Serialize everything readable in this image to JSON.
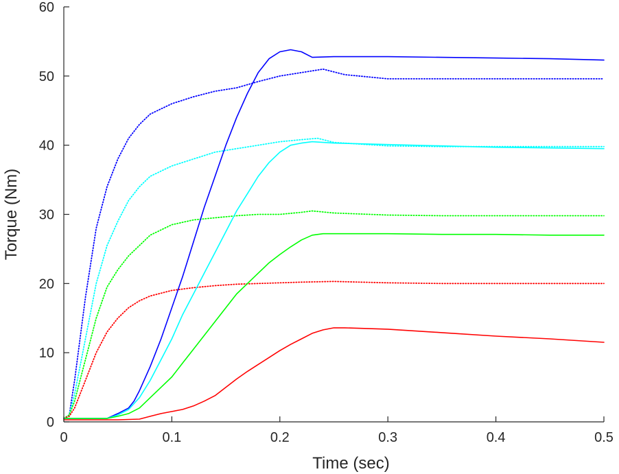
{
  "chart_data": {
    "type": "line",
    "title": "",
    "xlabel": "Time (sec)",
    "ylabel": "Torque (Nm)",
    "xlim": [
      0,
      0.5
    ],
    "ylim": [
      0,
      60
    ],
    "xticks": [
      0,
      0.1,
      0.2,
      0.3,
      0.4,
      0.5
    ],
    "xtick_labels": [
      "0",
      "0.1",
      "0.2",
      "0.3",
      "0.4",
      "0.5"
    ],
    "yticks": [
      0,
      10,
      20,
      30,
      40,
      50,
      60
    ],
    "ytick_labels": [
      "0",
      "10",
      "20",
      "30",
      "40",
      "50",
      "60"
    ],
    "grid": false,
    "legend": "none",
    "series": [
      {
        "name": "blue-dotted",
        "color": "#0000ff",
        "style": "dotted",
        "x": [
          0,
          0.005,
          0.01,
          0.02,
          0.03,
          0.04,
          0.05,
          0.06,
          0.07,
          0.08,
          0.1,
          0.12,
          0.14,
          0.16,
          0.18,
          0.2,
          0.22,
          0.24,
          0.26,
          0.3,
          0.35,
          0.4,
          0.45,
          0.5
        ],
        "values": [
          0.5,
          1,
          6,
          18,
          28,
          34,
          38,
          41,
          43,
          44.5,
          46,
          47,
          47.8,
          48.3,
          49.2,
          50,
          50.5,
          51,
          50.2,
          49.6,
          49.6,
          49.6,
          49.6,
          49.6
        ]
      },
      {
        "name": "cyan-dotted",
        "color": "#00ffff",
        "style": "dotted",
        "x": [
          0,
          0.005,
          0.01,
          0.02,
          0.03,
          0.04,
          0.05,
          0.06,
          0.07,
          0.08,
          0.1,
          0.12,
          0.14,
          0.16,
          0.18,
          0.2,
          0.22,
          0.235,
          0.25,
          0.3,
          0.35,
          0.4,
          0.45,
          0.5
        ],
        "values": [
          0.5,
          1,
          4,
          12,
          20,
          25.5,
          29,
          32,
          34,
          35.5,
          37,
          38,
          39,
          39.5,
          40,
          40.5,
          40.8,
          41,
          40.4,
          39.9,
          39.8,
          39.8,
          39.8,
          39.8
        ]
      },
      {
        "name": "green-dotted",
        "color": "#00ff00",
        "style": "dotted",
        "x": [
          0,
          0.005,
          0.01,
          0.02,
          0.03,
          0.04,
          0.05,
          0.06,
          0.07,
          0.08,
          0.1,
          0.12,
          0.14,
          0.16,
          0.18,
          0.2,
          0.22,
          0.23,
          0.25,
          0.3,
          0.35,
          0.4,
          0.45,
          0.5
        ],
        "values": [
          0.5,
          1,
          3,
          9,
          15,
          19.5,
          22,
          24,
          25.5,
          27,
          28.5,
          29.2,
          29.5,
          29.8,
          30,
          30,
          30.3,
          30.5,
          30.2,
          29.9,
          29.8,
          29.8,
          29.8,
          29.8
        ]
      },
      {
        "name": "red-dotted",
        "color": "#ff0000",
        "style": "dotted",
        "x": [
          0,
          0.005,
          0.01,
          0.02,
          0.03,
          0.04,
          0.05,
          0.06,
          0.07,
          0.08,
          0.1,
          0.12,
          0.14,
          0.16,
          0.18,
          0.2,
          0.22,
          0.25,
          0.3,
          0.35,
          0.4,
          0.45,
          0.5
        ],
        "values": [
          0.5,
          0.8,
          2,
          6,
          10,
          13,
          15,
          16.5,
          17.5,
          18.2,
          19,
          19.4,
          19.7,
          19.9,
          20,
          20.1,
          20.2,
          20.3,
          20.1,
          20,
          20,
          20,
          20
        ]
      },
      {
        "name": "blue-solid",
        "color": "#0000ff",
        "style": "solid",
        "x": [
          0,
          0.04,
          0.05,
          0.06,
          0.065,
          0.07,
          0.08,
          0.09,
          0.1,
          0.11,
          0.12,
          0.13,
          0.14,
          0.15,
          0.16,
          0.17,
          0.18,
          0.19,
          0.2,
          0.21,
          0.22,
          0.23,
          0.25,
          0.3,
          0.35,
          0.4,
          0.45,
          0.5
        ],
        "values": [
          0.5,
          0.5,
          1.2,
          2,
          3,
          4.5,
          8,
          12,
          16.5,
          21,
          26,
          31,
          35.5,
          40,
          44,
          47.5,
          50.5,
          52.5,
          53.5,
          53.8,
          53.5,
          52.7,
          52.8,
          52.8,
          52.7,
          52.6,
          52.5,
          52.3
        ]
      },
      {
        "name": "cyan-solid",
        "color": "#00ffff",
        "style": "solid",
        "x": [
          0,
          0.04,
          0.05,
          0.06,
          0.07,
          0.08,
          0.09,
          0.1,
          0.11,
          0.12,
          0.13,
          0.14,
          0.15,
          0.16,
          0.17,
          0.18,
          0.19,
          0.2,
          0.21,
          0.22,
          0.23,
          0.24,
          0.25,
          0.3,
          0.35,
          0.4,
          0.45,
          0.5
        ],
        "values": [
          0.5,
          0.5,
          1,
          1.8,
          3.5,
          6,
          9,
          12,
          15.5,
          18.5,
          21.5,
          24.5,
          27.5,
          30.5,
          33,
          35.5,
          37.5,
          39,
          40,
          40.3,
          40.5,
          40.4,
          40.3,
          40.1,
          39.9,
          39.7,
          39.6,
          39.5
        ]
      },
      {
        "name": "green-solid",
        "color": "#00ff00",
        "style": "solid",
        "x": [
          0,
          0.04,
          0.05,
          0.06,
          0.07,
          0.08,
          0.09,
          0.1,
          0.11,
          0.12,
          0.13,
          0.14,
          0.15,
          0.16,
          0.17,
          0.18,
          0.19,
          0.2,
          0.21,
          0.22,
          0.23,
          0.24,
          0.25,
          0.3,
          0.35,
          0.4,
          0.45,
          0.5
        ],
        "values": [
          0.5,
          0.5,
          0.8,
          1.2,
          2,
          3.5,
          5,
          6.5,
          8.5,
          10.5,
          12.5,
          14.5,
          16.5,
          18.5,
          20,
          21.5,
          23,
          24.2,
          25.3,
          26.3,
          27,
          27.2,
          27.2,
          27.2,
          27.1,
          27.1,
          27,
          27
        ]
      },
      {
        "name": "red-solid",
        "color": "#ff0000",
        "style": "solid",
        "x": [
          0,
          0.05,
          0.07,
          0.08,
          0.09,
          0.1,
          0.11,
          0.12,
          0.13,
          0.14,
          0.15,
          0.16,
          0.17,
          0.18,
          0.19,
          0.2,
          0.21,
          0.22,
          0.23,
          0.24,
          0.25,
          0.26,
          0.3,
          0.35,
          0.4,
          0.45,
          0.5
        ],
        "values": [
          0.3,
          0.3,
          0.4,
          0.8,
          1.2,
          1.5,
          1.8,
          2.3,
          3,
          3.8,
          5,
          6.2,
          7.3,
          8.3,
          9.3,
          10.3,
          11.2,
          12,
          12.8,
          13.3,
          13.6,
          13.6,
          13.4,
          12.9,
          12.4,
          12,
          11.5
        ]
      }
    ]
  }
}
